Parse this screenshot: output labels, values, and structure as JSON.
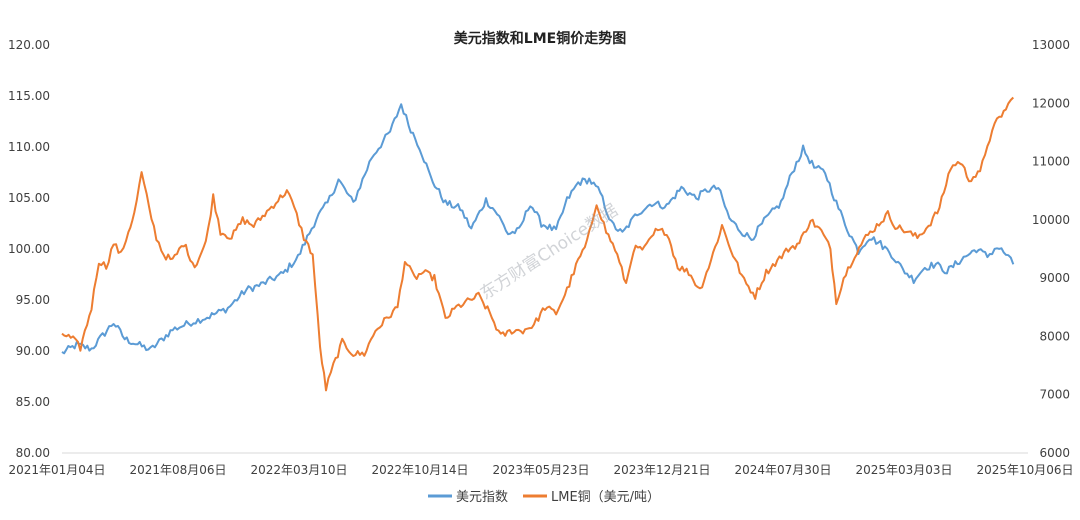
{
  "chart_data": {
    "type": "line",
    "title": "美元指数和LME铜价走势图",
    "x_tick_labels": [
      "2021年01月04日",
      "2021年08月06日",
      "2022年03月10日",
      "2022年10月14日",
      "2023年05月23日",
      "2023年12月21日",
      "2024年07月30日",
      "2025年03月03日",
      "2025年10月06日"
    ],
    "x_range": [
      0,
      1310
    ],
    "y_left": {
      "min": 80,
      "max": 120,
      "ticks": [
        "80.00",
        "85.00",
        "90.00",
        "95.00",
        "100.00",
        "105.00",
        "110.00",
        "115.00",
        "120.00"
      ]
    },
    "y_right": {
      "min": 6000,
      "max": 13000,
      "ticks": [
        "6000",
        "7000",
        "8000",
        "9000",
        "10000",
        "11000",
        "12000",
        "13000"
      ]
    },
    "series": [
      {
        "name": "美元指数",
        "color": "#5b9bd5",
        "axis": "left",
        "points": [
          [
            0,
            89.8
          ],
          [
            20,
            90.6
          ],
          [
            40,
            90.2
          ],
          [
            70,
            92.8
          ],
          [
            85,
            91.2
          ],
          [
            120,
            90.1
          ],
          [
            150,
            92.1
          ],
          [
            175,
            92.8
          ],
          [
            200,
            93.4
          ],
          [
            225,
            94.2
          ],
          [
            250,
            96.0
          ],
          [
            270,
            96.5
          ],
          [
            300,
            97.6
          ],
          [
            320,
            99.2
          ],
          [
            345,
            103.0
          ],
          [
            360,
            104.5
          ],
          [
            375,
            106.8
          ],
          [
            395,
            104.5
          ],
          [
            420,
            109.0
          ],
          [
            445,
            111.5
          ],
          [
            460,
            114.2
          ],
          [
            470,
            112.2
          ],
          [
            485,
            110.0
          ],
          [
            500,
            107.0
          ],
          [
            520,
            104.5
          ],
          [
            540,
            104.0
          ],
          [
            555,
            102.0
          ],
          [
            575,
            104.8
          ],
          [
            590,
            103.5
          ],
          [
            605,
            101.5
          ],
          [
            620,
            101.8
          ],
          [
            635,
            104.5
          ],
          [
            650,
            102.5
          ],
          [
            670,
            101.8
          ],
          [
            685,
            104.8
          ],
          [
            700,
            106.5
          ],
          [
            715,
            106.8
          ],
          [
            730,
            105.5
          ],
          [
            745,
            102.5
          ],
          [
            760,
            101.5
          ],
          [
            780,
            103.5
          ],
          [
            800,
            104.5
          ],
          [
            820,
            104.2
          ],
          [
            840,
            106.0
          ],
          [
            860,
            105.0
          ],
          [
            875,
            105.8
          ],
          [
            890,
            106.0
          ],
          [
            905,
            103.0
          ],
          [
            920,
            101.8
          ],
          [
            935,
            101.0
          ],
          [
            955,
            103.0
          ],
          [
            975,
            104.5
          ],
          [
            990,
            107.5
          ],
          [
            1005,
            109.8
          ],
          [
            1020,
            108.0
          ],
          [
            1035,
            107.5
          ],
          [
            1050,
            104.5
          ],
          [
            1065,
            102.0
          ],
          [
            1080,
            99.8
          ],
          [
            1095,
            101.2
          ],
          [
            1110,
            100.5
          ],
          [
            1125,
            99.5
          ],
          [
            1140,
            98.0
          ],
          [
            1155,
            97.0
          ],
          [
            1170,
            98.2
          ],
          [
            1185,
            98.5
          ],
          [
            1200,
            97.8
          ],
          [
            1220,
            99.0
          ],
          [
            1240,
            100.0
          ],
          [
            1255,
            99.3
          ],
          [
            1268,
            100.2
          ],
          [
            1280,
            99.5
          ],
          [
            1290,
            98.5
          ]
        ]
      },
      {
        "name": "LME铜（美元/吨）",
        "color": "#ed7d31",
        "axis": "right",
        "points": [
          [
            0,
            8050
          ],
          [
            15,
            7950
          ],
          [
            25,
            7800
          ],
          [
            40,
            8500
          ],
          [
            50,
            9300
          ],
          [
            60,
            9200
          ],
          [
            70,
            9600
          ],
          [
            80,
            9400
          ],
          [
            90,
            9800
          ],
          [
            98,
            10100
          ],
          [
            108,
            10800
          ],
          [
            118,
            10200
          ],
          [
            128,
            9700
          ],
          [
            138,
            9400
          ],
          [
            150,
            9300
          ],
          [
            165,
            9600
          ],
          [
            180,
            9200
          ],
          [
            195,
            9600
          ],
          [
            205,
            10400
          ],
          [
            215,
            9800
          ],
          [
            230,
            9700
          ],
          [
            245,
            10000
          ],
          [
            260,
            9900
          ],
          [
            275,
            10100
          ],
          [
            290,
            10300
          ],
          [
            305,
            10500
          ],
          [
            315,
            10200
          ],
          [
            328,
            9700
          ],
          [
            340,
            9400
          ],
          [
            350,
            7800
          ],
          [
            358,
            7100
          ],
          [
            368,
            7500
          ],
          [
            380,
            7900
          ],
          [
            395,
            7700
          ],
          [
            410,
            7700
          ],
          [
            425,
            8100
          ],
          [
            440,
            8300
          ],
          [
            455,
            8500
          ],
          [
            465,
            9300
          ],
          [
            478,
            9000
          ],
          [
            490,
            9100
          ],
          [
            505,
            9000
          ],
          [
            520,
            8300
          ],
          [
            535,
            8500
          ],
          [
            550,
            8600
          ],
          [
            565,
            8700
          ],
          [
            580,
            8400
          ],
          [
            595,
            8000
          ],
          [
            610,
            8100
          ],
          [
            625,
            8100
          ],
          [
            640,
            8200
          ],
          [
            655,
            8500
          ],
          [
            670,
            8400
          ],
          [
            685,
            8800
          ],
          [
            700,
            9300
          ],
          [
            712,
            9600
          ],
          [
            725,
            10300
          ],
          [
            738,
            9800
          ],
          [
            750,
            9500
          ],
          [
            765,
            8900
          ],
          [
            775,
            9500
          ],
          [
            790,
            9500
          ],
          [
            805,
            9800
          ],
          [
            820,
            9800
          ],
          [
            835,
            9200
          ],
          [
            850,
            9100
          ],
          [
            865,
            8800
          ],
          [
            880,
            9300
          ],
          [
            895,
            9900
          ],
          [
            910,
            9400
          ],
          [
            925,
            8950
          ],
          [
            940,
            8700
          ],
          [
            955,
            9100
          ],
          [
            970,
            9300
          ],
          [
            985,
            9500
          ],
          [
            1000,
            9600
          ],
          [
            1015,
            10000
          ],
          [
            1030,
            9800
          ],
          [
            1042,
            9500
          ],
          [
            1050,
            8600
          ],
          [
            1060,
            9000
          ],
          [
            1075,
            9400
          ],
          [
            1090,
            9700
          ],
          [
            1105,
            9900
          ],
          [
            1120,
            10100
          ],
          [
            1130,
            9900
          ],
          [
            1145,
            9800
          ],
          [
            1160,
            9700
          ],
          [
            1175,
            9900
          ],
          [
            1190,
            10200
          ],
          [
            1205,
            10900
          ],
          [
            1218,
            11000
          ],
          [
            1230,
            10700
          ],
          [
            1245,
            10800
          ],
          [
            1255,
            11300
          ],
          [
            1268,
            11700
          ],
          [
            1280,
            11900
          ],
          [
            1290,
            12100
          ]
        ]
      }
    ],
    "legend": {
      "position": "bottom"
    },
    "watermark": "东方财富Choice数据"
  }
}
